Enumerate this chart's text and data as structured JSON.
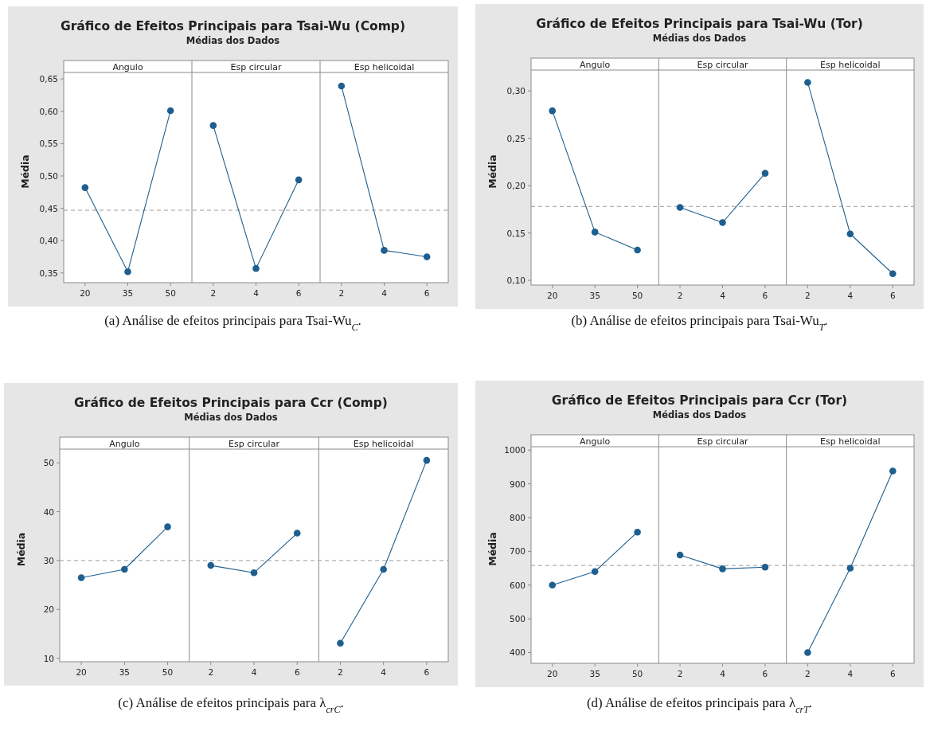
{
  "chart_data": [
    {
      "type": "line",
      "title": "Gráfico de Efeitos Principais para Tsai-Wu (Comp)",
      "subtitle": "Médias dos Dados",
      "ylabel": "Média",
      "categories": [
        "20",
        "35",
        "50",
        "2",
        "4",
        "6",
        "2",
        "4",
        "6"
      ],
      "series": [
        {
          "color": "#1f5f8f",
          "values": [
            0.482,
            0.352,
            0.601,
            null,
            null,
            null,
            null,
            null,
            null
          ]
        },
        {
          "color": "#1f5f8f",
          "values": [
            null,
            null,
            null,
            0.578,
            0.357,
            0.494,
            null,
            null,
            null
          ]
        },
        {
          "color": "#1f5f8f",
          "values": [
            null,
            null,
            null,
            null,
            null,
            null,
            0.639,
            0.385,
            0.375
          ]
        }
      ],
      "ylim": [
        0.335,
        0.66
      ],
      "yticks": [
        {
          "value": 0.35,
          "label": "0,35"
        },
        {
          "value": 0.4,
          "label": "0,40"
        },
        {
          "value": 0.45,
          "label": "0,45"
        },
        {
          "value": 0.5,
          "label": "0,50"
        },
        {
          "value": 0.55,
          "label": "0,55"
        },
        {
          "value": 0.6,
          "label": "0,60"
        },
        {
          "value": 0.65,
          "label": "0,65"
        }
      ],
      "ref_lines": [
        {
          "axis": "y",
          "value": 0.447,
          "color": "#9a9a9a",
          "line_style": "dashed"
        }
      ],
      "annotations": [
        "Angulo",
        "Esp circular",
        "Esp helicoidal",
        "(a)  Análise de efeitos principais para Tsai-Wu$_{C}$."
      ],
      "marker": "circle",
      "line_style": "solid",
      "grid": false
    },
    {
      "type": "line",
      "title": "Gráfico de Efeitos Principais para Tsai-Wu (Tor)",
      "subtitle": "Médias dos Dados",
      "ylabel": "Média",
      "categories": [
        "20",
        "35",
        "50",
        "2",
        "4",
        "6",
        "2",
        "4",
        "6"
      ],
      "series": [
        {
          "color": "#1f5f8f",
          "values": [
            0.279,
            0.151,
            0.132,
            null,
            null,
            null,
            null,
            null,
            null
          ]
        },
        {
          "color": "#1f5f8f",
          "values": [
            null,
            null,
            null,
            0.177,
            0.161,
            0.213,
            null,
            null,
            null
          ]
        },
        {
          "color": "#1f5f8f",
          "values": [
            null,
            null,
            null,
            null,
            null,
            null,
            0.309,
            0.149,
            0.107
          ]
        }
      ],
      "ylim": [
        0.095,
        0.322
      ],
      "yticks": [
        {
          "value": 0.1,
          "label": "0,10"
        },
        {
          "value": 0.15,
          "label": "0,15"
        },
        {
          "value": 0.2,
          "label": "0,20"
        },
        {
          "value": 0.25,
          "label": "0,25"
        },
        {
          "value": 0.3,
          "label": "0,30"
        }
      ],
      "ref_lines": [
        {
          "axis": "y",
          "value": 0.178,
          "color": "#9a9a9a",
          "line_style": "dashed"
        }
      ],
      "annotations": [
        "Angulo",
        "Esp circular",
        "Esp helicoidal",
        "(b)  Análise de efeitos principais para Tsai-Wu$_{T}$."
      ],
      "marker": "circle",
      "line_style": "solid",
      "grid": false
    },
    {
      "type": "line",
      "title": "Gráfico de Efeitos Principais para Ccr (Comp)",
      "subtitle": "Médias dos Dados",
      "ylabel": "Média",
      "categories": [
        "20",
        "35",
        "50",
        "2",
        "4",
        "6",
        "2",
        "4",
        "6"
      ],
      "series": [
        {
          "color": "#1f5f8f",
          "values": [
            26.5,
            28.2,
            36.9,
            null,
            null,
            null,
            null,
            null,
            null
          ]
        },
        {
          "color": "#1f5f8f",
          "values": [
            null,
            null,
            null,
            29.0,
            27.5,
            35.6,
            null,
            null,
            null
          ]
        },
        {
          "color": "#1f5f8f",
          "values": [
            null,
            null,
            null,
            null,
            null,
            null,
            13.1,
            28.2,
            50.5
          ]
        }
      ],
      "ylim": [
        9.3,
        52.8
      ],
      "yticks": [
        10,
        20,
        30,
        40,
        50
      ],
      "ref_lines": [
        {
          "axis": "y",
          "value": 30.0,
          "color": "#9a9a9a",
          "line_style": "dashed"
        }
      ],
      "annotations": [
        "Angulo",
        "Esp circular",
        "Esp helicoidal",
        "(c)  Análise de efeitos principais para λ$_{crC}$."
      ],
      "marker": "circle",
      "line_style": "solid",
      "grid": false
    },
    {
      "type": "line",
      "title": "Gráfico de Efeitos Principais para Ccr (Tor)",
      "subtitle": "Médias dos Dados",
      "ylabel": "Média",
      "categories": [
        "20",
        "35",
        "50",
        "2",
        "4",
        "6",
        "2",
        "4",
        "6"
      ],
      "series": [
        {
          "color": "#1f5f8f",
          "values": [
            600,
            640,
            757,
            null,
            null,
            null,
            null,
            null,
            null
          ]
        },
        {
          "color": "#1f5f8f",
          "values": [
            null,
            null,
            null,
            689,
            648,
            653,
            null,
            null,
            null
          ]
        },
        {
          "color": "#1f5f8f",
          "values": [
            null,
            null,
            null,
            null,
            null,
            null,
            400,
            650,
            938
          ]
        }
      ],
      "ylim": [
        368,
        1010
      ],
      "yticks": [
        400,
        500,
        600,
        700,
        800,
        900,
        1000
      ],
      "ref_lines": [
        {
          "axis": "y",
          "value": 658,
          "color": "#9a9a9a",
          "line_style": "dashed"
        }
      ],
      "annotations": [
        "Angulo",
        "Esp circular",
        "Esp helicoidal",
        "(d)  Análise de efeitos principais para λ$_{crT}$."
      ],
      "marker": "circle",
      "line_style": "solid",
      "grid": false
    }
  ]
}
